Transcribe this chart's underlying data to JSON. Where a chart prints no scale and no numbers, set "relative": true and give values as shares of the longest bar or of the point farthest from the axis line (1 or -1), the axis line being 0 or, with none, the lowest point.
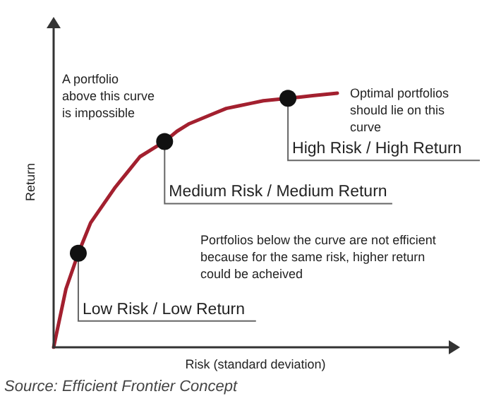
{
  "chart_data": {
    "type": "line",
    "relative": true,
    "xlabel": "Risk (standard deviation)",
    "ylabel": "Return",
    "grid": false,
    "categories": [
      null,
      null,
      null,
      null,
      null,
      null,
      null,
      null,
      null,
      null,
      null,
      null,
      null,
      null,
      null,
      null,
      null,
      null,
      null,
      null,
      null,
      null,
      null,
      null
    ],
    "series": [
      {
        "color": "#a3202f",
        "marker": "none",
        "values": [
          0,
          0.23,
          0.37,
          0.49,
          0.56,
          0.63,
          0.69,
          0.75,
          0.78,
          0.81,
          0.85,
          0.88,
          0.9,
          0.92,
          0.94,
          0.95,
          0.96,
          0.97,
          0.975,
          0.98,
          0.985,
          0.99,
          0.995,
          1
        ]
      }
    ],
    "annotations": [
      "Low Risk / Low Return",
      "Medium Risk / Medium Return",
      "High Risk / High Return",
      "A portfolio\nabove this curve\nis impossible",
      "Optimal portfolios\nshould lie on this\ncurve",
      "Portfolios below the curve are not efficient\nbecause for the same risk, higher return\ncould be acheived",
      "Source: Efficient Frontier Concept"
    ]
  }
}
